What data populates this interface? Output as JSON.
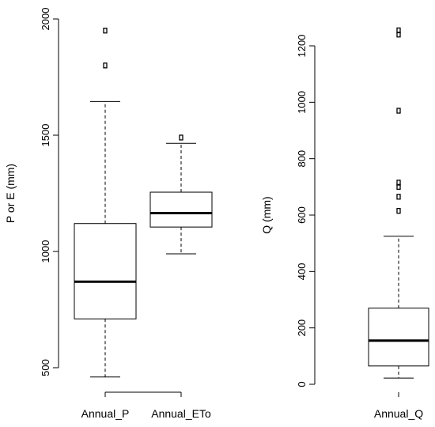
{
  "chart_data": [
    {
      "type": "box",
      "ylabel": "P or E (mm)",
      "ylim": [
        500,
        2000
      ],
      "yticks": [
        500,
        1000,
        1500,
        2000
      ],
      "grid": false,
      "categories": [
        "Annual_P",
        "Annual_ETo"
      ],
      "boxes": [
        {
          "name": "Annual_P",
          "whisker_low": 460,
          "q1": 710,
          "median": 870,
          "q3": 1120,
          "whisker_high": 1645,
          "outliers": [
            1800,
            1950
          ]
        },
        {
          "name": "Annual_ETo",
          "whisker_low": 990,
          "q1": 1105,
          "median": 1165,
          "q3": 1255,
          "whisker_high": 1465,
          "outliers": [
            1490
          ]
        }
      ]
    },
    {
      "type": "box",
      "ylabel": "Q (mm)",
      "ylim": [
        0,
        1200
      ],
      "yticks": [
        0,
        200,
        400,
        600,
        800,
        1000,
        1200
      ],
      "grid": false,
      "categories": [
        "Annual_Q"
      ],
      "boxes": [
        {
          "name": "Annual_Q",
          "whisker_low": 22,
          "q1": 65,
          "median": 155,
          "q3": 270,
          "whisker_high": 525,
          "outliers": [
            615,
            665,
            700,
            715,
            970,
            1240,
            1255
          ]
        }
      ]
    }
  ]
}
